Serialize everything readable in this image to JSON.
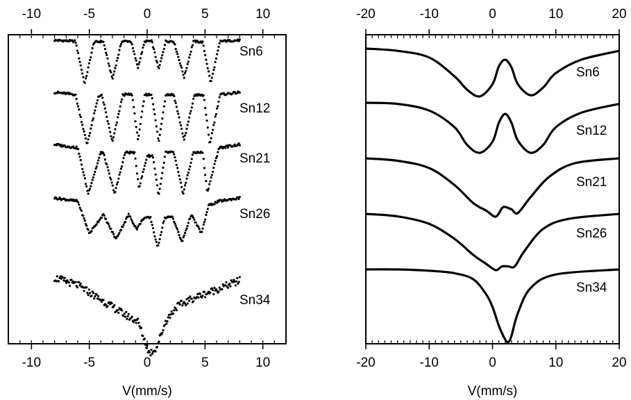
{
  "chart_data": [
    {
      "type": "scatter",
      "panel": "left",
      "xlabel": "V(mm/s)",
      "xlim": [
        -12,
        12
      ],
      "ticks": [
        -10,
        -5,
        0,
        5,
        10
      ],
      "tick_labels": [
        "-10",
        "-5",
        "0",
        "5",
        "10"
      ],
      "series": [
        {
          "name": "Sn6",
          "x": [
            -8,
            -6.2,
            -5.4,
            -4.6,
            -3.8,
            -3.0,
            -2.2,
            -1.4,
            -0.8,
            -0.2,
            0.4,
            1.0,
            1.6,
            2.3,
            3.2,
            4.0,
            4.8,
            5.5,
            6.3,
            8
          ],
          "y": [
            1.0,
            0.99,
            0.55,
            0.98,
            0.99,
            0.6,
            0.99,
            0.99,
            0.72,
            0.99,
            0.99,
            0.7,
            0.99,
            0.99,
            0.62,
            0.99,
            0.98,
            0.56,
            0.99,
            1.0
          ]
        },
        {
          "name": "Sn12",
          "x": [
            -8,
            -6.2,
            -5.2,
            -4.2,
            -3.9,
            -3.0,
            -2.1,
            -1.3,
            -0.8,
            -0.2,
            0.4,
            1.0,
            1.6,
            2.3,
            3.2,
            4.1,
            4.9,
            5.4,
            6.3,
            8
          ],
          "y": [
            1.0,
            0.98,
            0.53,
            0.97,
            0.97,
            0.55,
            0.98,
            0.98,
            0.57,
            0.98,
            0.98,
            0.55,
            0.98,
            0.98,
            0.57,
            0.98,
            0.97,
            0.53,
            0.98,
            1.0
          ]
        },
        {
          "name": "Sn21",
          "x": [
            -8,
            -6.0,
            -5.1,
            -4.0,
            -3.8,
            -2.8,
            -1.9,
            -1.1,
            -0.7,
            0,
            0.5,
            1.0,
            1.6,
            2.3,
            3.1,
            4.0,
            4.8,
            5.2,
            6.2,
            8
          ],
          "y": [
            1.0,
            0.97,
            0.57,
            0.93,
            0.93,
            0.57,
            0.93,
            0.93,
            0.62,
            0.9,
            0.9,
            0.55,
            0.93,
            0.93,
            0.57,
            0.93,
            0.93,
            0.58,
            0.97,
            1.0
          ]
        },
        {
          "name": "Sn26",
          "x": [
            -8,
            -6.0,
            -5.0,
            -3.8,
            -2.7,
            -1.6,
            -0.9,
            -0.3,
            0.3,
            0.9,
            1.5,
            2.2,
            3.0,
            3.8,
            4.7,
            5.3,
            6.2,
            8
          ],
          "y": [
            1.0,
            0.97,
            0.68,
            0.85,
            0.63,
            0.85,
            0.72,
            0.82,
            0.82,
            0.55,
            0.82,
            0.83,
            0.6,
            0.85,
            0.68,
            0.93,
            0.97,
            1.0
          ]
        },
        {
          "name": "Sn34",
          "x": [
            -8,
            -6,
            -4,
            -2,
            -0.8,
            0.2,
            0.8,
            1.6,
            2.5,
            4,
            6,
            8
          ],
          "y": [
            1.0,
            0.95,
            0.85,
            0.75,
            0.7,
            0.48,
            0.52,
            0.7,
            0.8,
            0.86,
            0.92,
            0.98
          ]
        }
      ]
    },
    {
      "type": "line",
      "panel": "right",
      "xlabel": "V(mm/s)",
      "xlim": [
        -20,
        20
      ],
      "ticks": [
        -20,
        -10,
        0,
        10,
        20
      ],
      "tick_labels": [
        "-20",
        "-10",
        "0",
        "10",
        "20"
      ],
      "series": [
        {
          "name": "Sn6",
          "x": [
            -20,
            -15,
            -10,
            -6,
            -4,
            -2,
            0,
            1,
            2,
            3,
            4,
            6,
            8,
            10,
            14,
            20
          ],
          "y": [
            1.0,
            0.98,
            0.92,
            0.75,
            0.63,
            0.57,
            0.68,
            0.84,
            0.9,
            0.83,
            0.68,
            0.58,
            0.65,
            0.78,
            0.9,
            0.98
          ]
        },
        {
          "name": "Sn12",
          "x": [
            -20,
            -15,
            -10,
            -6,
            -4,
            -2,
            0,
            1,
            2,
            3,
            4,
            6,
            8,
            10,
            14,
            20
          ],
          "y": [
            1.0,
            0.99,
            0.93,
            0.78,
            0.62,
            0.55,
            0.65,
            0.82,
            0.9,
            0.82,
            0.66,
            0.55,
            0.62,
            0.78,
            0.91,
            0.99
          ]
        },
        {
          "name": "Sn21",
          "x": [
            -20,
            -15,
            -10,
            -6,
            -3,
            -1,
            0.5,
            1.5,
            2,
            3,
            4,
            6,
            9,
            13,
            20
          ],
          "y": [
            1.0,
            0.98,
            0.92,
            0.78,
            0.63,
            0.57,
            0.52,
            0.59,
            0.6,
            0.58,
            0.55,
            0.68,
            0.85,
            0.96,
            1.0
          ]
        },
        {
          "name": "Sn26",
          "x": [
            -20,
            -15,
            -10,
            -6,
            -3,
            -1,
            0.5,
            1.5,
            2.5,
            3.5,
            5,
            8,
            12,
            20
          ],
          "y": [
            1.0,
            0.98,
            0.92,
            0.8,
            0.67,
            0.6,
            0.55,
            0.58,
            0.58,
            0.58,
            0.7,
            0.88,
            0.96,
            1.0
          ]
        },
        {
          "name": "Sn34",
          "x": [
            -20,
            -15,
            -10,
            -6,
            -3,
            -1,
            0,
            1,
            2,
            2.5,
            3,
            4,
            6,
            10,
            20
          ],
          "y": [
            1.0,
            1.0,
            0.99,
            0.97,
            0.92,
            0.8,
            0.7,
            0.55,
            0.44,
            0.42,
            0.47,
            0.65,
            0.85,
            0.96,
            1.0
          ]
        }
      ]
    }
  ]
}
